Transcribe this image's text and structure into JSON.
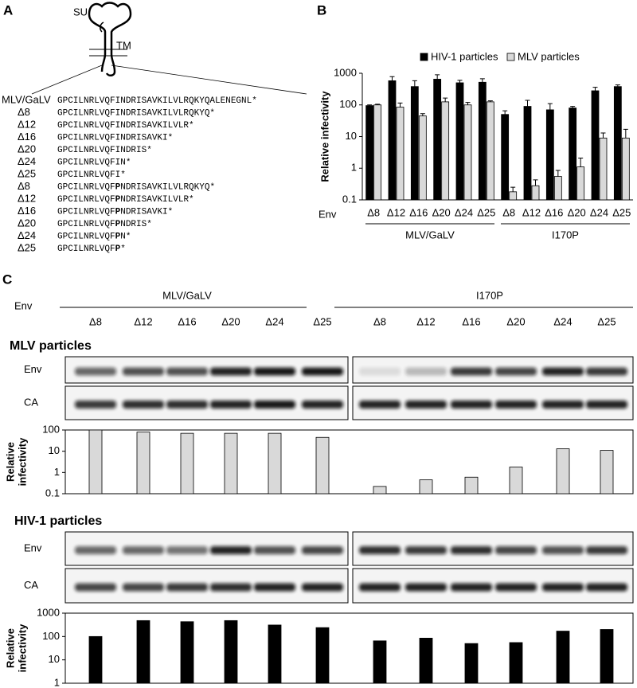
{
  "panel_labels": [
    "A",
    "B",
    "C"
  ],
  "panel_a": {
    "su": "SU",
    "tm": "TM",
    "sequences": [
      {
        "label": "MLV/GaLV",
        "seq": "GPCILNRLVQFINDRISAVKILVLRQKYQALENEGNL*"
      },
      {
        "label": "Δ8",
        "seq": "GPCILNRLVQFINDRISAVKILVLRQKYQ*"
      },
      {
        "label": "Δ12",
        "seq": "GPCILNRLVQFINDRISAVKILVLR*"
      },
      {
        "label": "Δ16",
        "seq": "GPCILNRLVQFINDRISAVKI*"
      },
      {
        "label": "Δ20",
        "seq": "GPCILNRLVQFINDRIS*"
      },
      {
        "label": "Δ24",
        "seq": "GPCILNRLVQFIN*"
      },
      {
        "label": "Δ25",
        "seq": "GPCILNRLVQFI*"
      },
      {
        "label": "Δ8",
        "seq": "GPCILNRLVQF",
        "bold": "P",
        "rest": "NDRISAVKILVLRQKYQ*"
      },
      {
        "label": "Δ12",
        "seq": "GPCILNRLVQF",
        "bold": "P",
        "rest": "NDRISAVKILVLR*"
      },
      {
        "label": "Δ16",
        "seq": "GPCILNRLVQF",
        "bold": "P",
        "rest": "NDRISAVKI*"
      },
      {
        "label": "Δ20",
        "seq": "GPCILNRLVQF",
        "bold": "P",
        "rest": "NDRIS*"
      },
      {
        "label": "Δ24",
        "seq": "GPCILNRLVQF",
        "bold": "P",
        "rest": "N*"
      },
      {
        "label": "Δ25",
        "seq": "GPCILNRLVQF",
        "bold": "P",
        "rest": "*"
      }
    ]
  },
  "panel_c": {
    "env_label": "Env",
    "groups": [
      {
        "name": "MLV/GaLV",
        "categories": [
          "Δ8",
          "Δ12",
          "Δ16",
          "Δ20",
          "Δ24",
          "Δ25"
        ]
      },
      {
        "name": "I170P",
        "categories": [
          "Δ8",
          "Δ12",
          "Δ16",
          "Δ20",
          "Δ24",
          "Δ25"
        ]
      }
    ],
    "sections": [
      {
        "title": "MLV particles",
        "rows": [
          "Env",
          "CA"
        ]
      },
      {
        "title": "HIV-1 particles",
        "rows": [
          "Env",
          "CA"
        ]
      }
    ]
  },
  "chart_data": [
    {
      "type": "bar",
      "y_label": "Relative infectivity",
      "x_label": "Env",
      "ylog": true,
      "ylim": [
        0.1,
        1000
      ],
      "yticks": [
        0.1,
        1,
        10,
        100,
        1000
      ],
      "groups": [
        {
          "name": "MLV/GaLV",
          "categories": [
            "Δ8",
            "Δ12",
            "Δ16",
            "Δ20",
            "Δ24",
            "Δ25"
          ]
        },
        {
          "name": "I170P",
          "categories": [
            "Δ8",
            "Δ12",
            "Δ16",
            "Δ20",
            "Δ24",
            "Δ25"
          ]
        }
      ],
      "series": [
        {
          "name": "HIV-1 particles",
          "color": "#000000",
          "values": [
            95,
            580,
            380,
            650,
            500,
            520,
            50,
            90,
            70,
            80,
            280,
            380
          ],
          "errors": [
            5,
            200,
            200,
            250,
            100,
            150,
            15,
            50,
            40,
            10,
            80,
            50
          ]
        },
        {
          "name": "MLV particles",
          "color": "#d9d9d9",
          "values": [
            100,
            85,
            45,
            125,
            100,
            125,
            0.18,
            0.28,
            0.55,
            1.1,
            9,
            9
          ],
          "errors": [
            5,
            30,
            8,
            40,
            20,
            10,
            0.07,
            0.15,
            0.3,
            1.0,
            4,
            8
          ]
        }
      ]
    },
    {
      "type": "bar",
      "y_label": [
        "Relative",
        "infectivity"
      ],
      "ylog": true,
      "ylim": [
        0.1,
        100
      ],
      "yticks": [
        0.1,
        1,
        10,
        100
      ],
      "color": "#d9d9d9",
      "values": [
        100,
        80,
        70,
        70,
        70,
        45,
        0.22,
        0.45,
        0.6,
        1.8,
        13,
        11
      ]
    },
    {
      "type": "bar",
      "y_label": [
        "Relative",
        "infectivity"
      ],
      "ylog": true,
      "ylim": [
        1,
        1000
      ],
      "yticks": [
        1,
        10,
        100,
        1000
      ],
      "color": "#000000",
      "values": [
        100,
        480,
        430,
        480,
        310,
        240,
        65,
        85,
        50,
        55,
        170,
        200
      ]
    }
  ]
}
